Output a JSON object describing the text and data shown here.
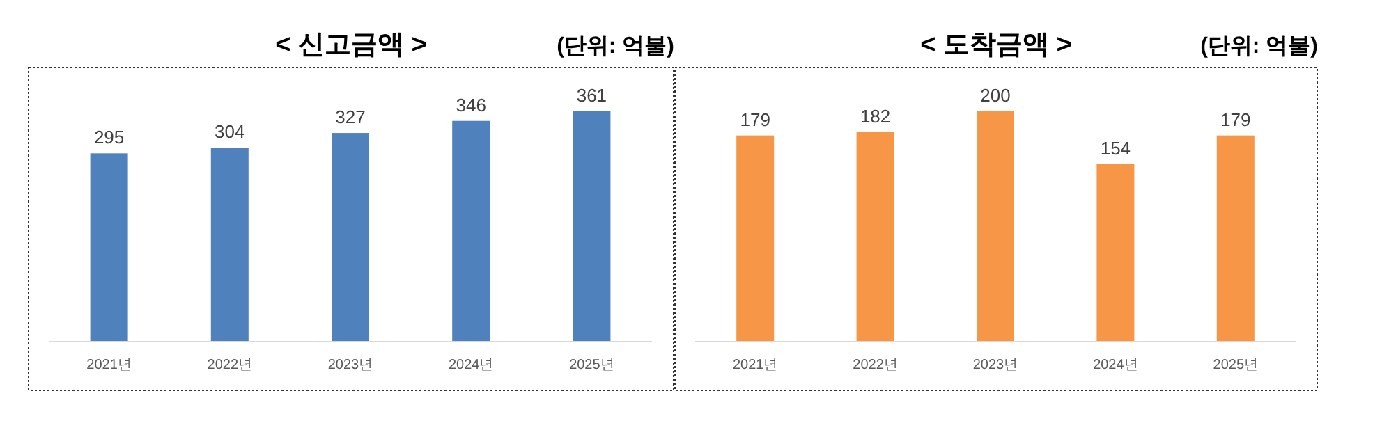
{
  "chart_data": [
    {
      "type": "bar",
      "title": "<  신고금액  >",
      "subtitle": "(단위: 억불)",
      "categories": [
        "2021년",
        "2022년",
        "2023년",
        "2024년",
        "2025년"
      ],
      "values": [
        295,
        304,
        327,
        346,
        361
      ],
      "color": "#4f81bd",
      "data_labels": true
    },
    {
      "type": "bar",
      "title": "<  도착금액  >",
      "subtitle": "(단위: 억불)",
      "categories": [
        "2021년",
        "2022년",
        "2023년",
        "2024년",
        "2025년"
      ],
      "values": [
        179,
        182,
        200,
        154,
        179
      ],
      "color": "#f79646",
      "data_labels": true
    }
  ]
}
